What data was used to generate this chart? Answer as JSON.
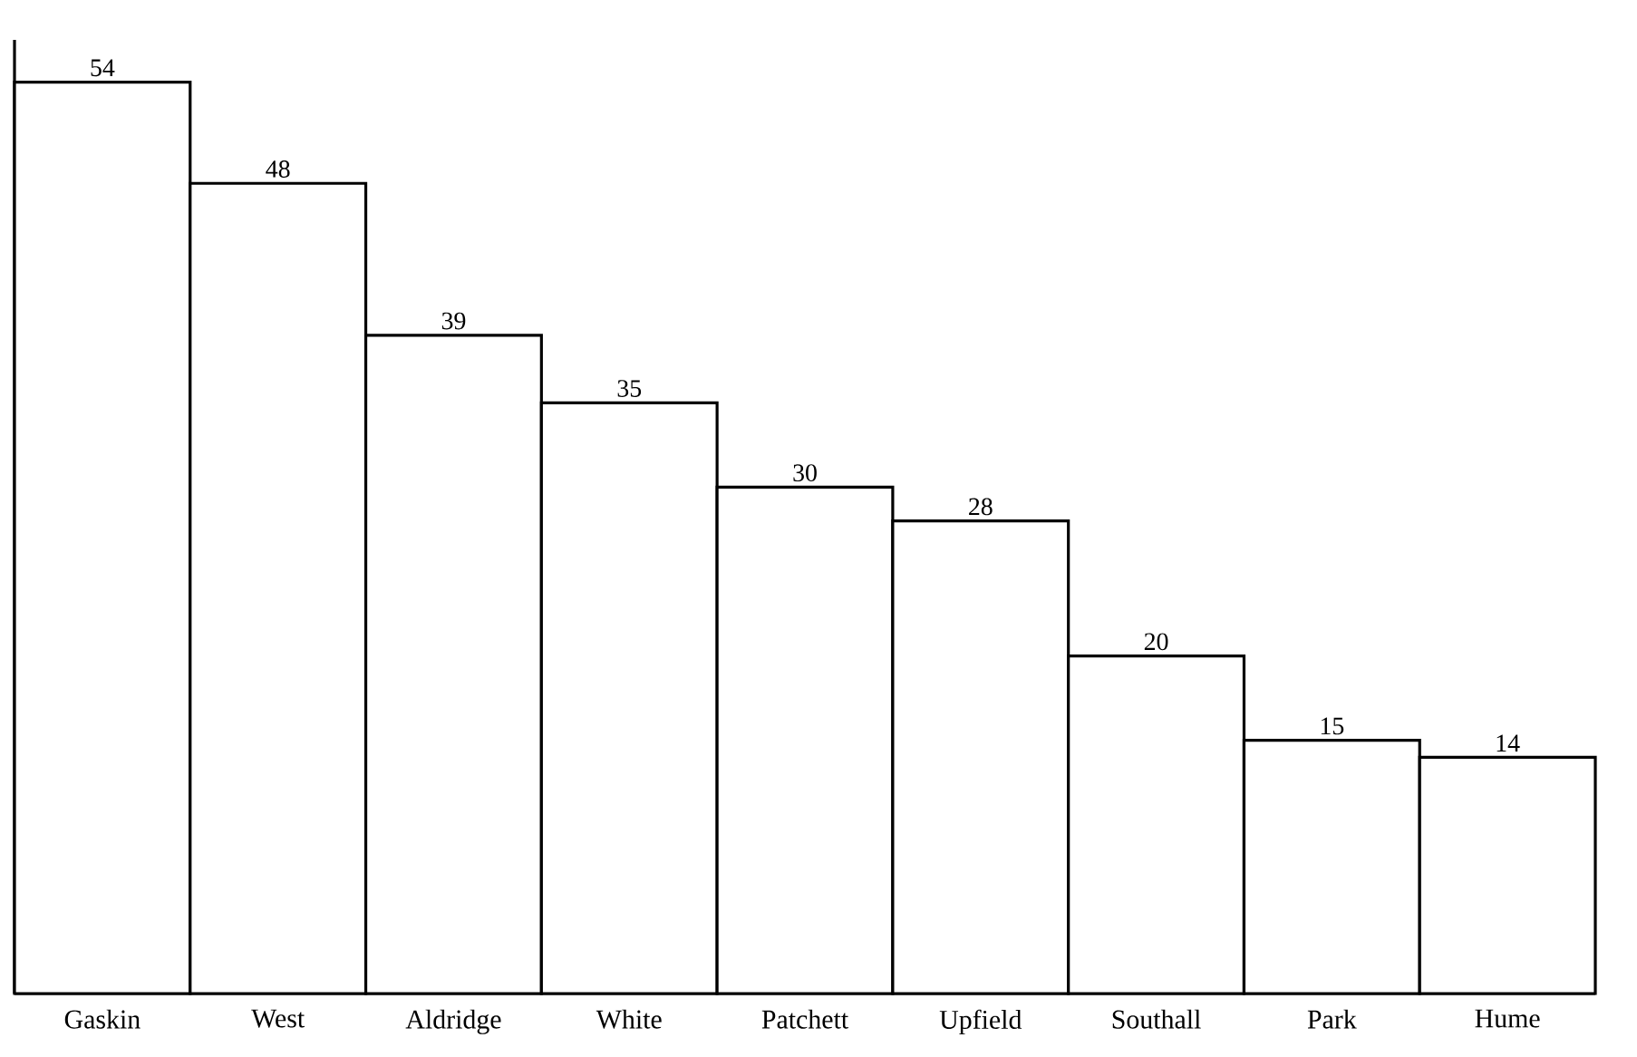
{
  "chart_data": {
    "type": "bar",
    "categories": [
      "Gaskin",
      "West",
      "Aldridge",
      "White",
      "Patchett",
      "Upfield",
      "Southall",
      "Park",
      "Hume"
    ],
    "values": [
      54,
      48,
      39,
      35,
      30,
      28,
      20,
      15,
      14
    ],
    "color": "#ffffff",
    "ylim": [
      0,
      56.5
    ],
    "data_labels": true
  }
}
